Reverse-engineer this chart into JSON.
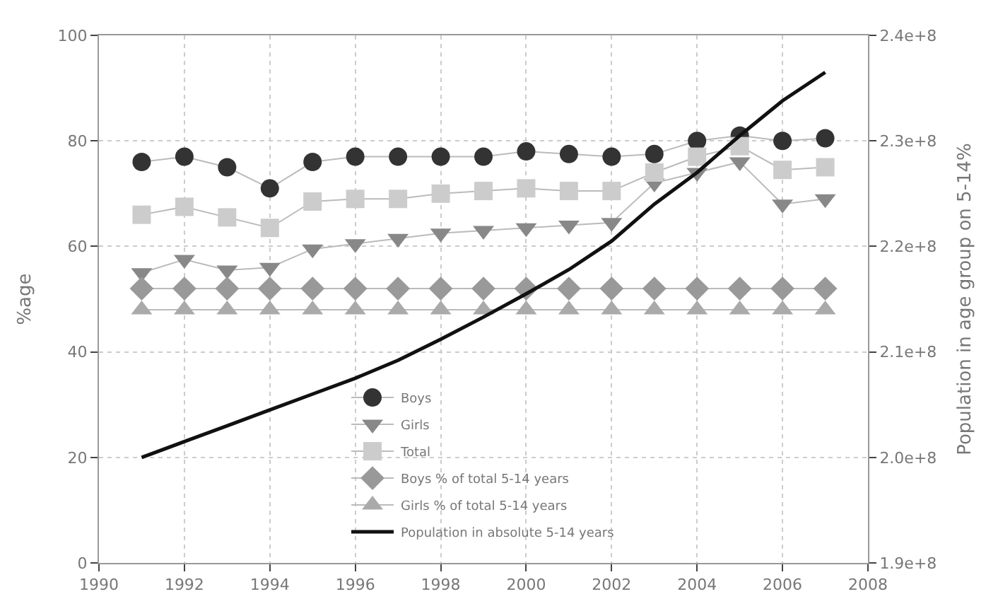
{
  "chart_data": {
    "type": "line",
    "ylabel": "%age",
    "y2label": "Population in age group on 5-14%",
    "x": [
      1991,
      1992,
      1993,
      1994,
      1995,
      1996,
      1997,
      1998,
      1999,
      2000,
      2001,
      2002,
      2003,
      2004,
      2005,
      2006,
      2007
    ],
    "xlim": [
      1990,
      2008
    ],
    "xticks": [
      1990,
      1992,
      1994,
      1996,
      1998,
      2000,
      2002,
      2004,
      2006,
      2008
    ],
    "ylim": [
      0,
      100
    ],
    "yticks": [
      0,
      20,
      40,
      60,
      80,
      100
    ],
    "y2lim": [
      190000000,
      240000000
    ],
    "y2ticks": [
      {
        "value": 190000000,
        "label": "1.9e+8"
      },
      {
        "value": 200000000,
        "label": "2.0e+8"
      },
      {
        "value": 210000000,
        "label": "2.1e+8"
      },
      {
        "value": 220000000,
        "label": "2.2e+8"
      },
      {
        "value": 230000000,
        "label": "2.3e+8"
      },
      {
        "value": 240000000,
        "label": "2.4e+8"
      }
    ],
    "grid": true,
    "legend": "bottom",
    "series": [
      {
        "name": "Boys",
        "color": "#333333",
        "marker": "circle",
        "values": [
          76,
          77,
          75,
          71,
          76,
          77,
          77,
          77,
          77,
          78,
          77.5,
          77,
          77.5,
          80,
          81,
          80,
          80.5
        ]
      },
      {
        "name": "Girls",
        "color": "#888888",
        "marker": "triangle-down",
        "values": [
          55,
          57.5,
          55.5,
          56,
          59.5,
          60.5,
          61.5,
          62.5,
          63,
          63.5,
          64,
          64.5,
          72,
          74,
          76,
          68,
          69
        ]
      },
      {
        "name": "Total",
        "color": "#cccccc",
        "marker": "square",
        "values": [
          66,
          67.5,
          65.5,
          63.5,
          68.5,
          69,
          69,
          70,
          70.5,
          71,
          70.5,
          70.5,
          74,
          77,
          79,
          74.5,
          75
        ]
      },
      {
        "name": "Boys % of total 5-14 years",
        "color": "#999999",
        "marker": "diamond",
        "values": [
          52,
          52,
          52,
          52,
          52,
          52,
          52,
          52,
          52,
          52,
          52,
          52,
          52,
          52,
          52,
          52,
          52
        ]
      },
      {
        "name": "Girls % of total 5-14 years",
        "color": "#aaaaaa",
        "marker": "triangle",
        "values": [
          48,
          48,
          48,
          48,
          48,
          48,
          48,
          48,
          48,
          48,
          48,
          48,
          48,
          48,
          48,
          48,
          48
        ]
      },
      {
        "name": "Population in absolute 5-14 years",
        "color": "#111111",
        "marker": "none",
        "axis": "y2",
        "values": [
          200000000,
          201500000,
          203000000,
          204500000,
          206000000,
          207500000,
          209200000,
          211200000,
          213300000,
          215500000,
          217800000,
          220500000,
          224000000,
          227000000,
          230500000,
          233800000,
          236500000
        ]
      }
    ]
  }
}
